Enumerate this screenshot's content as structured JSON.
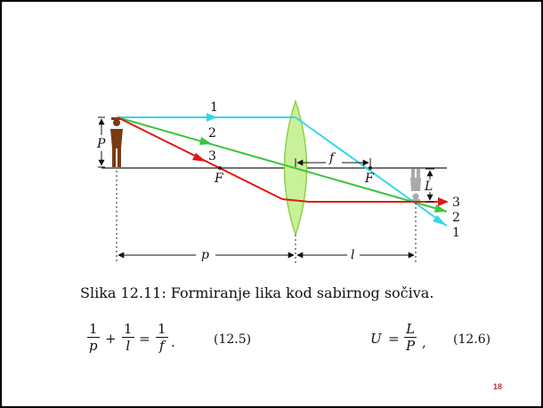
{
  "figure": {
    "ray_labels": {
      "ray1": "1",
      "ray2": "2",
      "ray3": "3"
    },
    "ray_exit_labels": {
      "ray3": "3",
      "ray2": "2",
      "ray1": "1"
    },
    "object_height_label": "P",
    "image_height_label": "L",
    "focus_left_label": "F",
    "focus_right_label": "F",
    "focal_length_label": "f",
    "object_distance_label": "p",
    "image_distance_label": "l",
    "colors": {
      "ray1": "#35d6ec",
      "ray2": "#3cc43c",
      "ray3": "#e01818",
      "lens_fill": "#c9f19a",
      "lens_stroke": "#8fd04a",
      "object": "#7a3a12",
      "image": "#aaaaaa",
      "axis": "#222222"
    }
  },
  "caption": "Slika 12.11: Formiranje lika kod sabirnog sočiva.",
  "equation1": {
    "term1": {
      "num": "1",
      "den": "p"
    },
    "plus": "+",
    "term2": {
      "num": "1",
      "den": "l"
    },
    "equals": "=",
    "term3": {
      "num": "1",
      "den": "f"
    },
    "trail": ".",
    "number": "(12.5)"
  },
  "equation2": {
    "lhs": "U",
    "equals": "=",
    "frac": {
      "num": "L",
      "den": "P"
    },
    "trail": ",",
    "number": "(12.6)"
  },
  "page_number": "18"
}
